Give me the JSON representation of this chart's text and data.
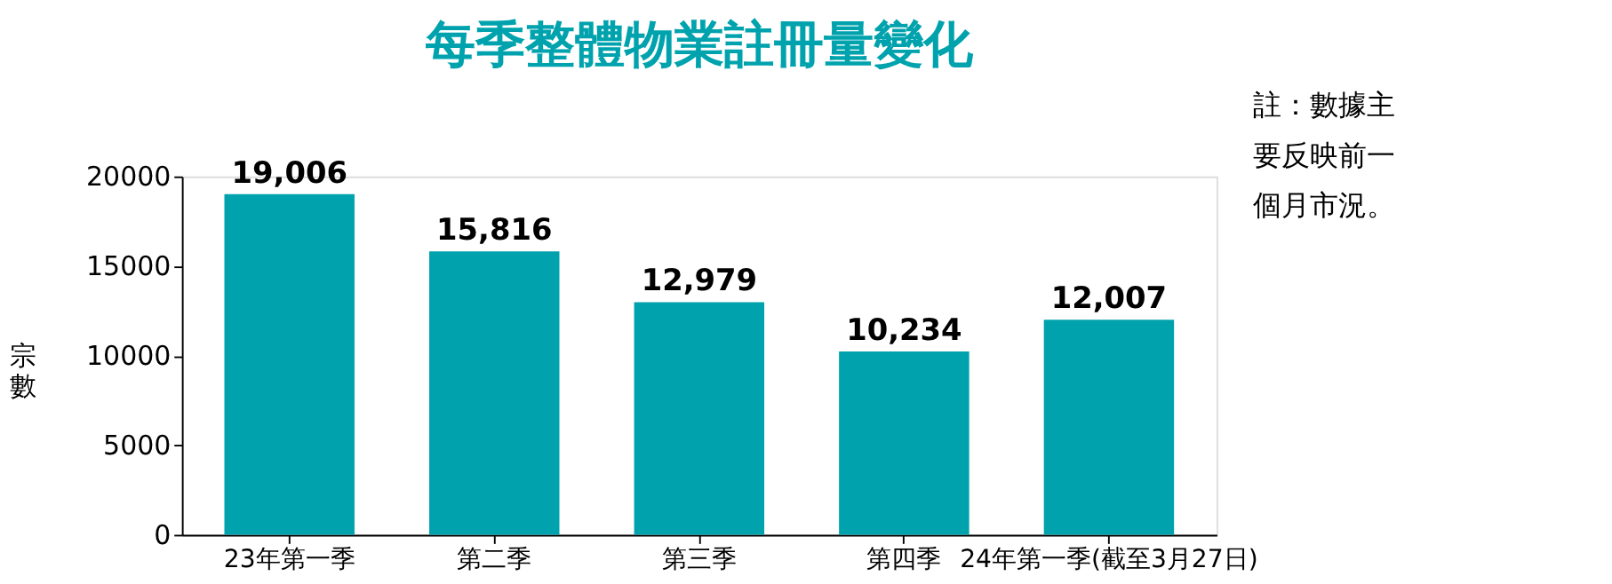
{
  "chart_data": {
    "type": "bar",
    "title": "每季整體物業註冊量變化",
    "ylabel": "宗數",
    "categories": [
      "23年第一季",
      "第二季",
      "第三季",
      "第四季",
      "24年第一季(截至3月27日)"
    ],
    "values": [
      19006,
      15816,
      12979,
      10234,
      12007
    ],
    "value_labels": [
      "19,006",
      "15,816",
      "12,979",
      "10,234",
      "12,007"
    ],
    "color": "#00a3ad",
    "ylim": [
      0,
      20000
    ],
    "yticks": [
      0,
      5000,
      10000,
      15000,
      20000
    ],
    "grid": false,
    "annotations": [
      "註：數據主要反映前一個月市況。"
    ]
  }
}
